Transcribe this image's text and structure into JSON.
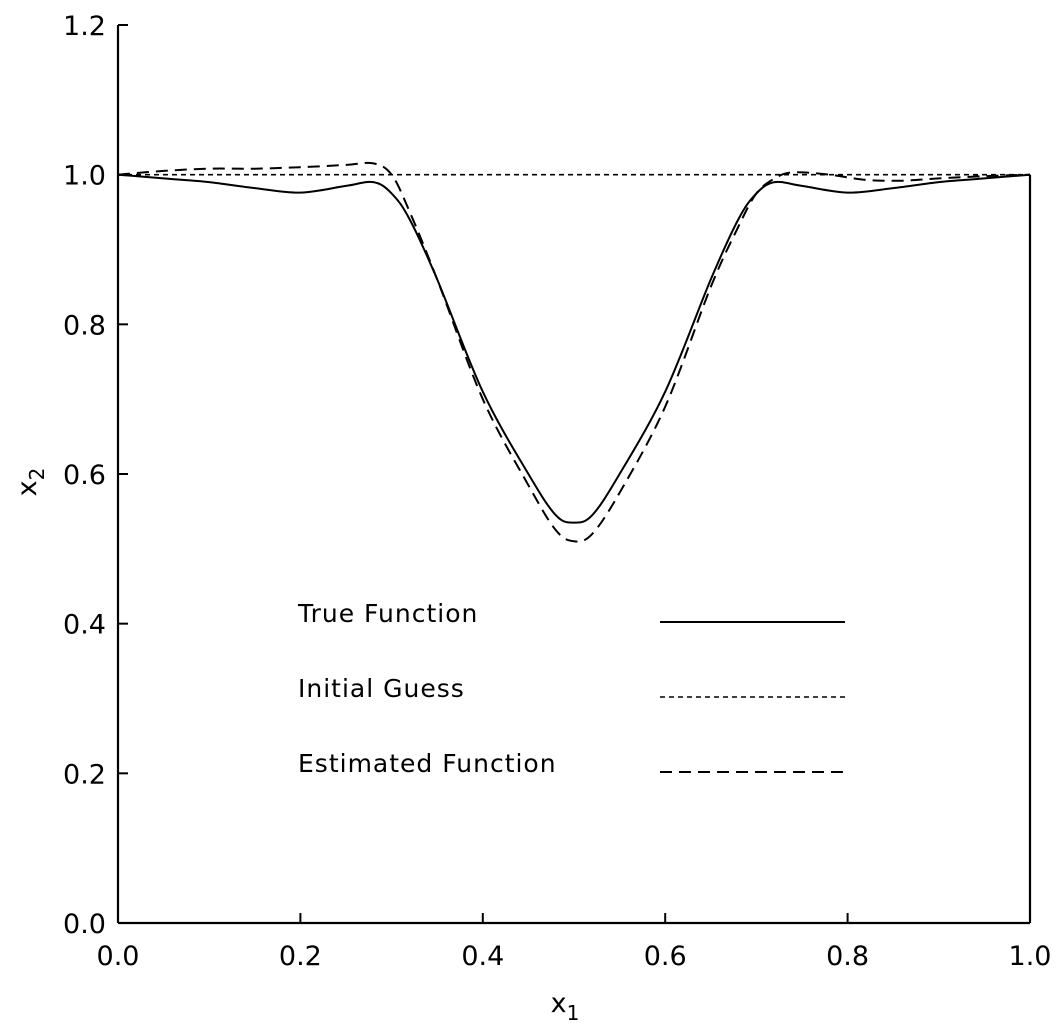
{
  "chart_data": {
    "type": "line",
    "xlabel": "x",
    "xlabel_sub": "1",
    "ylabel": "x",
    "ylabel_sub": "2",
    "xlim": [
      0.0,
      1.0
    ],
    "ylim": [
      0.0,
      1.2
    ],
    "x_ticks": [
      "0.0",
      "0.2",
      "0.4",
      "0.6",
      "0.8",
      "1.0"
    ],
    "y_ticks": [
      "0.0",
      "0.2",
      "0.4",
      "0.6",
      "0.8",
      "1.0",
      "1.2"
    ],
    "grid": false,
    "legend_placement": "center",
    "series": [
      {
        "name": "True Function",
        "style": "solid",
        "x": [
          0.0,
          0.05,
          0.1,
          0.15,
          0.2,
          0.25,
          0.28,
          0.3,
          0.32,
          0.35,
          0.4,
          0.45,
          0.48,
          0.5,
          0.52,
          0.55,
          0.6,
          0.65,
          0.68,
          0.7,
          0.72,
          0.75,
          0.8,
          0.85,
          0.9,
          0.95,
          1.0
        ],
        "values": [
          1.0,
          0.995,
          0.99,
          0.982,
          0.976,
          0.985,
          0.99,
          0.975,
          0.94,
          0.86,
          0.71,
          0.6,
          0.545,
          0.535,
          0.545,
          0.6,
          0.71,
          0.86,
          0.94,
          0.975,
          0.99,
          0.985,
          0.976,
          0.982,
          0.99,
          0.995,
          1.0
        ]
      },
      {
        "name": "Initial Guess",
        "style": "dotted",
        "x": [
          0.0,
          1.0
        ],
        "values": [
          1.0,
          1.0
        ]
      },
      {
        "name": "Estimated Function",
        "style": "dashed",
        "x": [
          0.0,
          0.05,
          0.1,
          0.15,
          0.2,
          0.25,
          0.28,
          0.3,
          0.32,
          0.35,
          0.4,
          0.45,
          0.48,
          0.5,
          0.52,
          0.55,
          0.6,
          0.65,
          0.68,
          0.7,
          0.72,
          0.74,
          0.78,
          0.82,
          0.86,
          0.9,
          0.95,
          1.0
        ],
        "values": [
          1.0,
          1.005,
          1.008,
          1.008,
          1.01,
          1.013,
          1.015,
          1.0,
          0.95,
          0.86,
          0.7,
          0.585,
          0.525,
          0.51,
          0.52,
          0.575,
          0.69,
          0.85,
          0.93,
          0.975,
          0.995,
          1.003,
          1.0,
          0.993,
          0.992,
          0.995,
          0.998,
          1.0
        ]
      }
    ]
  }
}
